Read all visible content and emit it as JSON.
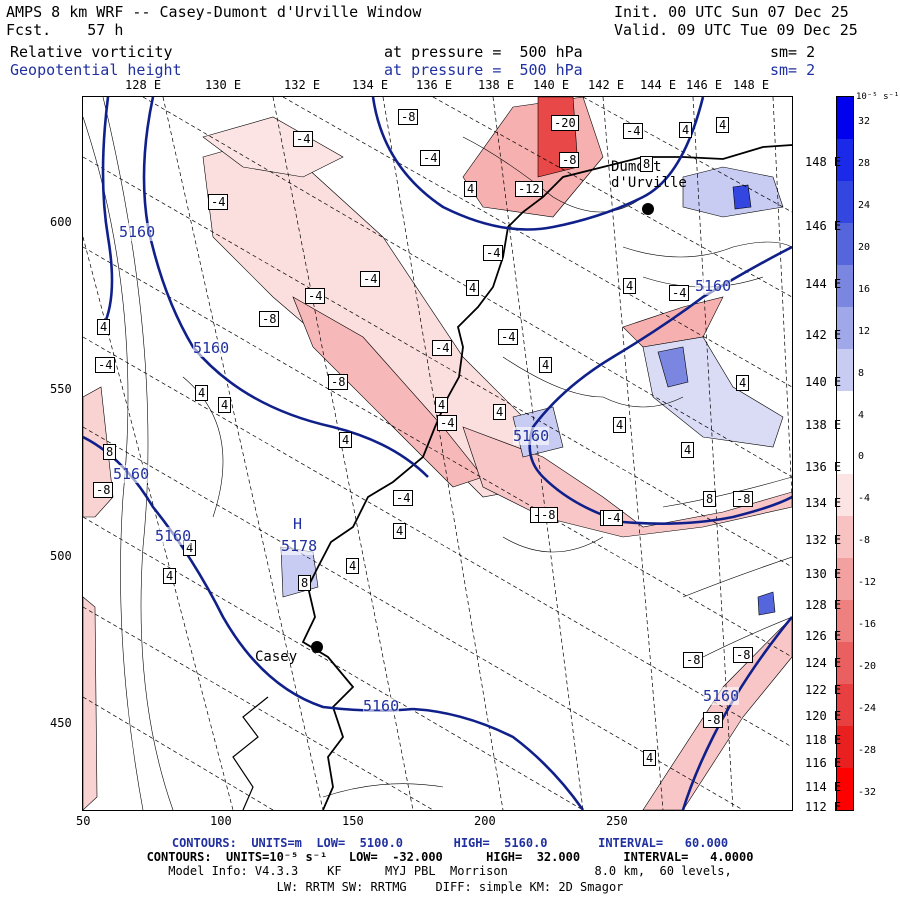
{
  "header": {
    "left1": "AMPS 8 km WRF -- Casey-Dumont d'Urville Window",
    "left2": "Fcst.    57 h",
    "right1": "Init. 00 UTC Sun 07 Dec 25",
    "right2": "Valid. 09 UTC Tue 09 Dec 25",
    "field1_name": "Relative vorticity",
    "field1_level": "at pressure =  500 hPa",
    "field1_sm": "sm= 2",
    "field2_name": "Geopotential height",
    "field2_level": "at pressure =  500 hPa",
    "field2_sm": "sm= 2"
  },
  "axes": {
    "x_ticks": [
      "50",
      "100",
      "150",
      "200",
      "250"
    ],
    "y_ticks": [
      "600",
      "550",
      "500",
      "450"
    ],
    "top_lon": [
      "128 E",
      "130 E",
      "132 E",
      "134 E",
      "136 E",
      "138 E",
      "140 E",
      "142 E",
      "144 E",
      "146 E",
      "148 E"
    ],
    "right_lon": [
      "148 E",
      "146 E",
      "144 E",
      "142 E",
      "140 E",
      "138 E",
      "136 E",
      "134 E",
      "132 E",
      "130 E",
      "128 E",
      "126 E",
      "124 E",
      "122 E",
      "120 E",
      "118 E",
      "116 E",
      "114 E",
      "112 E"
    ]
  },
  "colorbar": {
    "unit": "10⁻⁵ s⁻¹",
    "labels": [
      "32",
      "28",
      "24",
      "20",
      "16",
      "12",
      "8",
      "4",
      "0",
      "-4",
      "-8",
      "-12",
      "-16",
      "-20",
      "-24",
      "-28",
      "-32"
    ],
    "colors": [
      "#0000ee",
      "#1a2ae8",
      "#3446e0",
      "#5565dc",
      "#7a86e0",
      "#a0a8ea",
      "#c8ccf2",
      "#ffffff",
      "#ffffff",
      "#fde4e4",
      "#f8c2c2",
      "#f2a0a0",
      "#ee8080",
      "#ea6060",
      "#e84040",
      "#e82020",
      "#ff0000"
    ]
  },
  "map_labels": {
    "stations": [
      "Casey",
      "Dumont d'Urville"
    ],
    "high_marker": "H",
    "high_value": "5178",
    "height_contours": [
      "5160",
      "5160",
      "5160",
      "5160",
      "5160",
      "5160",
      "5160",
      "5160"
    ],
    "vort_labels": [
      "-4",
      "-8",
      "-20",
      "-4",
      "4",
      "-4",
      "-12",
      "-8",
      "8",
      "-4",
      "4",
      "-4",
      "-4",
      "-4",
      "-8",
      "-4",
      "4",
      "-4",
      "4",
      "-8",
      "8",
      "-4",
      "-8",
      "4",
      "-8",
      "-4",
      "8",
      "4",
      "-8",
      "-8",
      "4",
      "8",
      "4",
      "4",
      "4",
      "4",
      "4",
      "-4",
      "-8",
      "-4",
      "4",
      "4",
      "4",
      "4",
      "-4",
      "4",
      "-4",
      "-8",
      "-8",
      "4",
      "4",
      "4"
    ]
  },
  "footer": {
    "line1": "CONTOURS:  UNITS=m  LOW=  5100.0       HIGH=  5160.0       INTERVAL=   60.000",
    "line2": "CONTOURS:  UNITS=10⁻⁵ s⁻¹   LOW=  -32.000      HIGH=  32.000      INTERVAL=   4.0000",
    "line3": "Model Info: V4.3.3    KF      MYJ PBL  Morrison            8.0 km,  60 levels,",
    "line4": "LW: RRTM SW: RRTMG    DIFF: simple KM: 2D Smagor"
  }
}
